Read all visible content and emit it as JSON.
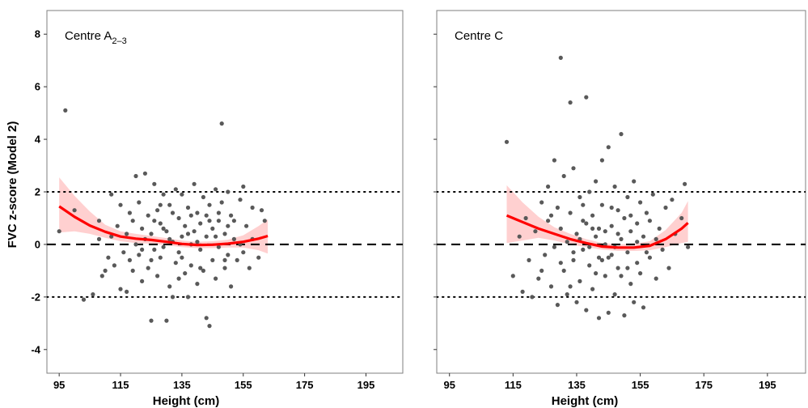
{
  "chart_data": [
    {
      "type": "scatter",
      "title_main": "Centre A",
      "title_sub": "2–3",
      "xlabel": "Height (cm)",
      "ylabel": "FVC z-score (Model 2)",
      "xlim": [
        91,
        207
      ],
      "ylim": [
        -4.9,
        8.9
      ],
      "xticks": [
        95,
        115,
        135,
        155,
        175,
        195
      ],
      "yticks": [
        8,
        6,
        4,
        2,
        0,
        -2,
        -4
      ],
      "reference_lines": [
        {
          "y": 2,
          "style": "dotted"
        },
        {
          "y": 0,
          "style": "dashed"
        },
        {
          "y": -2,
          "style": "dotted"
        }
      ],
      "points_color": "#595959",
      "fit_color": "#ff0000",
      "band_color": "#ffc8c8",
      "fit": {
        "x": [
          95,
          100,
          105,
          110,
          115,
          120,
          125,
          130,
          135,
          140,
          145,
          150,
          155,
          160,
          163
        ],
        "y": [
          1.45,
          1.05,
          0.72,
          0.48,
          0.3,
          0.22,
          0.17,
          0.1,
          0.02,
          -0.02,
          -0.01,
          0.03,
          0.1,
          0.22,
          0.32
        ],
        "lower": [
          0.45,
          0.5,
          0.4,
          0.25,
          0.12,
          0.05,
          0.03,
          -0.03,
          -0.1,
          -0.14,
          -0.14,
          -0.12,
          -0.12,
          -0.22,
          -0.35
        ],
        "upper": [
          2.55,
          1.85,
          1.25,
          0.75,
          0.5,
          0.4,
          0.32,
          0.24,
          0.15,
          0.1,
          0.12,
          0.18,
          0.35,
          0.7,
          0.95
        ]
      },
      "points": [
        [
          95,
          0.5
        ],
        [
          97,
          5.1
        ],
        [
          100,
          1.3
        ],
        [
          103,
          -2.1
        ],
        [
          106,
          -1.9
        ],
        [
          108,
          0.9
        ],
        [
          108,
          0.2
        ],
        [
          109,
          -1.2
        ],
        [
          110,
          -1.0
        ],
        [
          111,
          -0.5
        ],
        [
          112,
          0.3
        ],
        [
          112,
          1.9
        ],
        [
          113,
          -0.8
        ],
        [
          114,
          0.7
        ],
        [
          115,
          -1.7
        ],
        [
          115,
          1.5
        ],
        [
          116,
          -0.3
        ],
        [
          117,
          0.4
        ],
        [
          117,
          -1.8
        ],
        [
          118,
          1.2
        ],
        [
          118,
          -0.6
        ],
        [
          119,
          0.9
        ],
        [
          119,
          -1.0
        ],
        [
          120,
          2.6
        ],
        [
          120,
          0.0
        ],
        [
          121,
          -0.4
        ],
        [
          121,
          1.6
        ],
        [
          122,
          0.6
        ],
        [
          122,
          -1.4
        ],
        [
          123,
          2.7
        ],
        [
          123,
          0.2
        ],
        [
          124,
          -0.9
        ],
        [
          124,
          1.1
        ],
        [
          125,
          -2.9
        ],
        [
          125,
          0.4
        ],
        [
          126,
          2.3
        ],
        [
          126,
          -0.2
        ],
        [
          127,
          1.3
        ],
        [
          127,
          -1.2
        ],
        [
          128,
          0.8
        ],
        [
          128,
          -0.5
        ],
        [
          129,
          1.9
        ],
        [
          129,
          -0.1
        ],
        [
          130,
          -2.9
        ],
        [
          130,
          0.5
        ],
        [
          131,
          1.5
        ],
        [
          131,
          -1.6
        ],
        [
          132,
          -2.0
        ],
        [
          132,
          0.1
        ],
        [
          133,
          2.1
        ],
        [
          133,
          -0.7
        ],
        [
          134,
          1.0
        ],
        [
          134,
          -0.3
        ],
        [
          135,
          1.9
        ],
        [
          135,
          0.3
        ],
        [
          136,
          -1.1
        ],
        [
          136,
          0.7
        ],
        [
          137,
          -2.0
        ],
        [
          137,
          1.4
        ],
        [
          138,
          0.0
        ],
        [
          138,
          -0.8
        ],
        [
          139,
          2.3
        ],
        [
          139,
          0.5
        ],
        [
          140,
          -1.5
        ],
        [
          140,
          1.2
        ],
        [
          141,
          -0.2
        ],
        [
          141,
          0.8
        ],
        [
          142,
          1.8
        ],
        [
          142,
          -1.0
        ],
        [
          143,
          0.3
        ],
        [
          143,
          -2.8
        ],
        [
          144,
          -3.1
        ],
        [
          144,
          1.5
        ],
        [
          145,
          -0.6
        ],
        [
          145,
          0.6
        ],
        [
          146,
          2.1
        ],
        [
          146,
          -1.3
        ],
        [
          147,
          0.9
        ],
        [
          147,
          -0.1
        ],
        [
          148,
          4.6
        ],
        [
          148,
          1.6
        ],
        [
          149,
          -0.9
        ],
        [
          149,
          0.4
        ],
        [
          150,
          2.0
        ],
        [
          150,
          -0.4
        ],
        [
          151,
          1.1
        ],
        [
          151,
          -1.6
        ],
        [
          152,
          0.2
        ],
        [
          152,
          0.9
        ],
        [
          153,
          -0.6
        ],
        [
          154,
          1.7
        ],
        [
          154,
          0.0
        ],
        [
          155,
          2.2
        ],
        [
          155,
          -0.3
        ],
        [
          156,
          0.7
        ],
        [
          157,
          -0.9
        ],
        [
          158,
          1.4
        ],
        [
          158,
          0.2
        ],
        [
          160,
          -0.5
        ],
        [
          161,
          1.3
        ],
        [
          162,
          0.9
        ],
        [
          126,
          0.9
        ],
        [
          129,
          0.6
        ],
        [
          132,
          1.2
        ],
        [
          135,
          -0.5
        ],
        [
          138,
          1.1
        ],
        [
          141,
          -0.9
        ],
        [
          144,
          0.9
        ],
        [
          147,
          1.2
        ],
        [
          150,
          0.7
        ],
        [
          122,
          -0.2
        ],
        [
          125,
          -0.6
        ],
        [
          128,
          1.5
        ],
        [
          131,
          0.2
        ],
        [
          134,
          -1.3
        ],
        [
          137,
          0.4
        ],
        [
          140,
          0.1
        ],
        [
          143,
          1.1
        ],
        [
          146,
          0.3
        ],
        [
          149,
          -0.6
        ]
      ]
    },
    {
      "type": "scatter",
      "title_main": "Centre C",
      "title_sub": "",
      "xlabel": "Height (cm)",
      "ylabel": "",
      "xlim": [
        91,
        207
      ],
      "ylim": [
        -4.9,
        8.9
      ],
      "xticks": [
        95,
        115,
        135,
        155,
        175,
        195
      ],
      "yticks": [],
      "reference_lines": [
        {
          "y": 2,
          "style": "dotted"
        },
        {
          "y": 0,
          "style": "dashed"
        },
        {
          "y": -2,
          "style": "dotted"
        }
      ],
      "points_color": "#595959",
      "fit_color": "#ff0000",
      "band_color": "#ffc8c8",
      "fit": {
        "x": [
          113,
          118,
          123,
          128,
          133,
          138,
          143,
          148,
          153,
          158,
          163,
          168,
          170
        ],
        "y": [
          1.1,
          0.85,
          0.6,
          0.4,
          0.2,
          0.05,
          -0.08,
          -0.12,
          -0.12,
          -0.05,
          0.2,
          0.6,
          0.82
        ],
        "lower": [
          0.05,
          0.15,
          0.25,
          0.15,
          0.0,
          -0.1,
          -0.2,
          -0.25,
          -0.25,
          -0.22,
          -0.1,
          0.05,
          0.1
        ],
        "upper": [
          2.25,
          1.6,
          1.05,
          0.65,
          0.4,
          0.2,
          0.05,
          0.0,
          0.02,
          0.12,
          0.55,
          1.2,
          1.65
        ]
      },
      "points": [
        [
          113,
          3.9
        ],
        [
          115,
          -1.2
        ],
        [
          117,
          0.3
        ],
        [
          118,
          -1.8
        ],
        [
          119,
          1.0
        ],
        [
          120,
          -0.6
        ],
        [
          121,
          -2.0
        ],
        [
          122,
          0.5
        ],
        [
          123,
          -1.3
        ],
        [
          124,
          1.6
        ],
        [
          125,
          -0.4
        ],
        [
          126,
          2.2
        ],
        [
          126,
          0.9
        ],
        [
          127,
          -1.6
        ],
        [
          128,
          -0.1
        ],
        [
          128,
          3.2
        ],
        [
          129,
          1.4
        ],
        [
          129,
          -2.3
        ],
        [
          130,
          7.1
        ],
        [
          130,
          0.6
        ],
        [
          131,
          -1.0
        ],
        [
          131,
          2.6
        ],
        [
          132,
          0.1
        ],
        [
          132,
          -1.9
        ],
        [
          133,
          5.4
        ],
        [
          133,
          1.2
        ],
        [
          134,
          -0.6
        ],
        [
          134,
          2.9
        ],
        [
          135,
          -2.2
        ],
        [
          135,
          0.4
        ],
        [
          136,
          1.8
        ],
        [
          136,
          -1.4
        ],
        [
          137,
          0.9
        ],
        [
          137,
          -0.2
        ],
        [
          138,
          5.6
        ],
        [
          138,
          -2.5
        ],
        [
          139,
          2.0
        ],
        [
          139,
          -0.8
        ],
        [
          140,
          1.1
        ],
        [
          140,
          -1.7
        ],
        [
          141,
          0.3
        ],
        [
          141,
          2.4
        ],
        [
          142,
          -0.5
        ],
        [
          142,
          -2.8
        ],
        [
          143,
          3.2
        ],
        [
          143,
          1.5
        ],
        [
          144,
          0.0
        ],
        [
          144,
          -1.2
        ],
        [
          145,
          3.7
        ],
        [
          145,
          -2.6
        ],
        [
          146,
          0.7
        ],
        [
          146,
          -0.4
        ],
        [
          147,
          2.2
        ],
        [
          147,
          -1.9
        ],
        [
          148,
          1.3
        ],
        [
          148,
          -0.9
        ],
        [
          149,
          4.2
        ],
        [
          149,
          0.2
        ],
        [
          150,
          -2.7
        ],
        [
          150,
          1.0
        ],
        [
          151,
          -0.3
        ],
        [
          151,
          1.8
        ],
        [
          152,
          -1.5
        ],
        [
          152,
          0.5
        ],
        [
          153,
          2.4
        ],
        [
          153,
          -2.2
        ],
        [
          154,
          0.8
        ],
        [
          154,
          -0.7
        ],
        [
          155,
          1.6
        ],
        [
          155,
          -1.1
        ],
        [
          156,
          0.3
        ],
        [
          156,
          -2.4
        ],
        [
          157,
          1.2
        ],
        [
          158,
          -0.5
        ],
        [
          158,
          0.9
        ],
        [
          159,
          1.9
        ],
        [
          160,
          -1.3
        ],
        [
          161,
          0.6
        ],
        [
          162,
          -0.2
        ],
        [
          163,
          1.4
        ],
        [
          164,
          -0.9
        ],
        [
          165,
          1.7
        ],
        [
          166,
          0.4
        ],
        [
          168,
          1.0
        ],
        [
          169,
          2.3
        ],
        [
          170,
          -0.1
        ],
        [
          124,
          -1.0
        ],
        [
          127,
          1.1
        ],
        [
          130,
          -0.7
        ],
        [
          133,
          -1.6
        ],
        [
          136,
          0.2
        ],
        [
          139,
          -0.1
        ],
        [
          142,
          0.6
        ],
        [
          145,
          -0.5
        ],
        [
          148,
          0.4
        ],
        [
          151,
          -0.9
        ],
        [
          154,
          0.1
        ],
        [
          157,
          -0.3
        ],
        [
          160,
          0.2
        ],
        [
          137,
          1.5
        ],
        [
          140,
          0.6
        ],
        [
          143,
          -0.6
        ],
        [
          146,
          1.4
        ],
        [
          149,
          -1.2
        ],
        [
          152,
          1.1
        ],
        [
          134,
          -0.3
        ],
        [
          138,
          0.8
        ],
        [
          141,
          -1.1
        ],
        [
          144,
          0.5
        ],
        [
          147,
          -0.1
        ]
      ]
    }
  ]
}
